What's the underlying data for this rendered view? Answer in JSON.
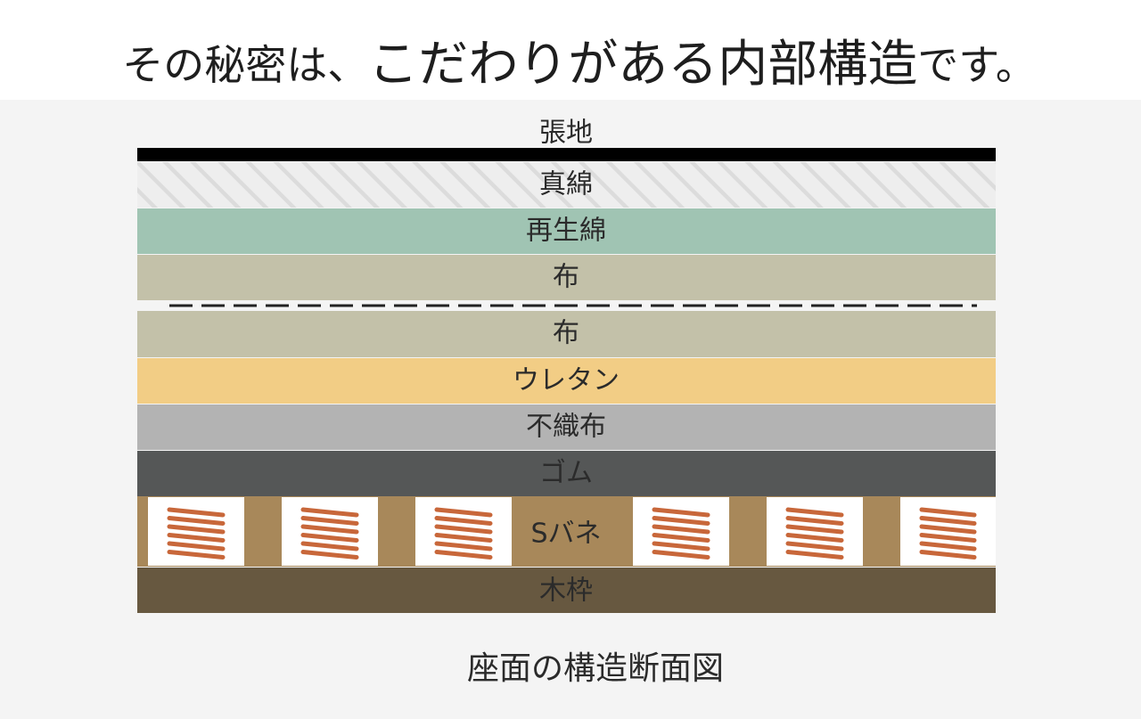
{
  "header": {
    "parts": [
      "その秘密は、",
      "こだわりがある内部構造",
      "です。"
    ]
  },
  "layers": [
    "張地",
    "真綿",
    "再生綿",
    "布",
    "布",
    "ウレタン",
    "不織布",
    "ゴム",
    "Sバネ",
    "木枠"
  ],
  "caption": "座面の構造断面図"
}
